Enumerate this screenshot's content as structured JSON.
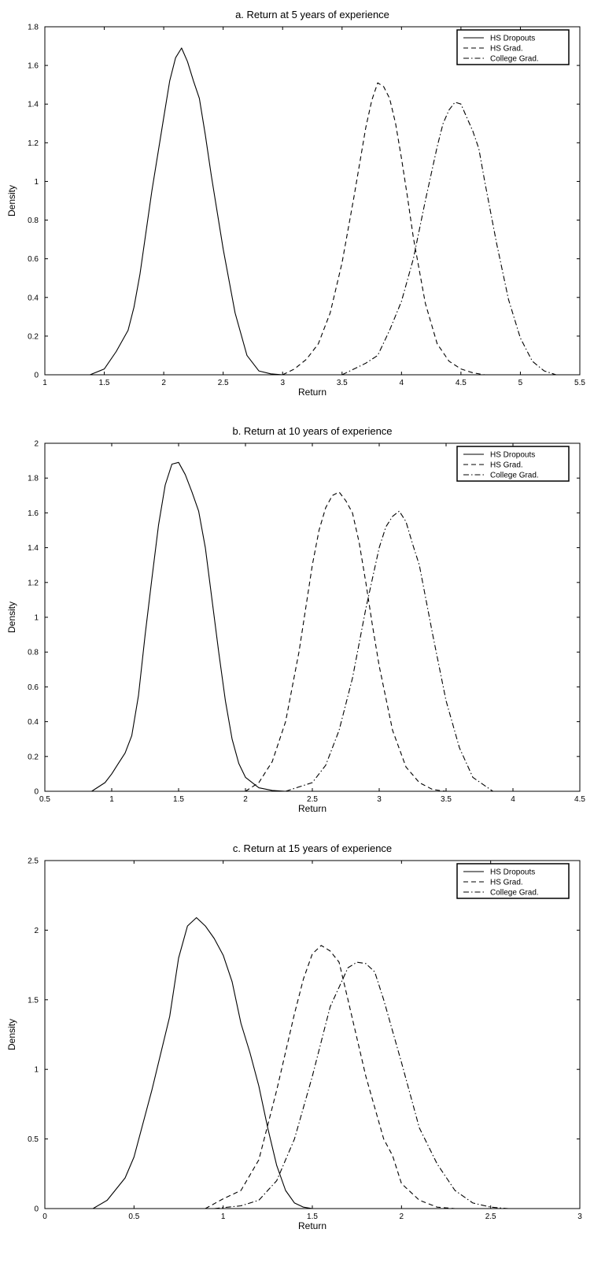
{
  "chart_data": [
    {
      "type": "line",
      "title": "a. Return at 5 years of experience",
      "xlabel": "Return",
      "ylabel": "Density",
      "xlim": [
        1,
        5.5
      ],
      "ylim": [
        0,
        1.8
      ],
      "xticks": [
        "1",
        "1.5",
        "2",
        "2.5",
        "3",
        "3.5",
        "4",
        "4.5",
        "5",
        "5.5"
      ],
      "yticks": [
        "0",
        "0.2",
        "0.4",
        "0.6",
        "0.8",
        "1",
        "1.2",
        "1.4",
        "1.6",
        "1.8"
      ],
      "grid": false,
      "legend_position": "top-right",
      "series": [
        {
          "name": "HS Dropouts",
          "dash": "solid",
          "x": [
            1.38,
            1.5,
            1.6,
            1.7,
            1.75,
            1.8,
            1.9,
            2.0,
            2.05,
            2.1,
            2.15,
            2.2,
            2.25,
            2.3,
            2.35,
            2.4,
            2.5,
            2.6,
            2.7,
            2.8,
            2.9,
            3.0
          ],
          "y": [
            0.0,
            0.03,
            0.12,
            0.23,
            0.35,
            0.52,
            0.95,
            1.33,
            1.52,
            1.64,
            1.69,
            1.62,
            1.52,
            1.43,
            1.24,
            1.03,
            0.65,
            0.32,
            0.1,
            0.02,
            0.005,
            0.0
          ]
        },
        {
          "name": "HS Grad.",
          "dash": "dashed",
          "x": [
            3.0,
            3.1,
            3.2,
            3.3,
            3.4,
            3.5,
            3.6,
            3.7,
            3.75,
            3.8,
            3.85,
            3.9,
            3.95,
            4.0,
            4.05,
            4.1,
            4.2,
            4.3,
            4.4,
            4.5,
            4.6,
            4.7
          ],
          "y": [
            0.0,
            0.03,
            0.08,
            0.16,
            0.32,
            0.58,
            0.92,
            1.28,
            1.42,
            1.51,
            1.49,
            1.43,
            1.3,
            1.12,
            0.92,
            0.71,
            0.37,
            0.16,
            0.07,
            0.03,
            0.01,
            0.0
          ]
        },
        {
          "name": "College Grad.",
          "dash": "dashdot",
          "x": [
            3.5,
            3.7,
            3.8,
            3.9,
            4.0,
            4.1,
            4.2,
            4.3,
            4.35,
            4.4,
            4.45,
            4.5,
            4.55,
            4.6,
            4.65,
            4.7,
            4.8,
            4.9,
            5.0,
            5.1,
            5.2,
            5.3
          ],
          "y": [
            0.0,
            0.06,
            0.1,
            0.23,
            0.38,
            0.6,
            0.9,
            1.18,
            1.3,
            1.37,
            1.41,
            1.4,
            1.33,
            1.26,
            1.17,
            1.0,
            0.68,
            0.39,
            0.19,
            0.07,
            0.02,
            0.0
          ]
        }
      ]
    },
    {
      "type": "line",
      "title": "b. Return at 10 years of experience",
      "xlabel": "Return",
      "ylabel": "Density",
      "xlim": [
        0.5,
        4.5
      ],
      "ylim": [
        0,
        2
      ],
      "xticks": [
        "0.5",
        "1",
        "1.5",
        "2",
        "2.5",
        "3",
        "3.5",
        "4",
        "4.5"
      ],
      "yticks": [
        "0",
        "0.2",
        "0.4",
        "0.6",
        "0.8",
        "1",
        "1.2",
        "1.4",
        "1.6",
        "1.8",
        "2"
      ],
      "grid": false,
      "legend_position": "top-right",
      "series": [
        {
          "name": "HS Dropouts",
          "dash": "solid",
          "x": [
            0.85,
            0.95,
            1.0,
            1.05,
            1.1,
            1.15,
            1.2,
            1.25,
            1.3,
            1.35,
            1.4,
            1.45,
            1.5,
            1.55,
            1.6,
            1.65,
            1.7,
            1.75,
            1.8,
            1.85,
            1.9,
            1.95,
            2.0,
            2.1,
            2.2,
            2.3
          ],
          "y": [
            0.0,
            0.05,
            0.1,
            0.16,
            0.22,
            0.32,
            0.55,
            0.9,
            1.22,
            1.53,
            1.76,
            1.88,
            1.89,
            1.82,
            1.72,
            1.61,
            1.4,
            1.1,
            0.8,
            0.52,
            0.3,
            0.16,
            0.08,
            0.02,
            0.005,
            0.0
          ]
        },
        {
          "name": "HS Grad.",
          "dash": "dashed",
          "x": [
            2.0,
            2.1,
            2.2,
            2.3,
            2.4,
            2.5,
            2.55,
            2.6,
            2.65,
            2.7,
            2.75,
            2.8,
            2.85,
            2.9,
            2.95,
            3.0,
            3.1,
            3.2,
            3.3,
            3.4,
            3.5
          ],
          "y": [
            0.0,
            0.05,
            0.17,
            0.4,
            0.8,
            1.3,
            1.5,
            1.63,
            1.7,
            1.72,
            1.67,
            1.6,
            1.43,
            1.2,
            0.95,
            0.72,
            0.35,
            0.14,
            0.05,
            0.01,
            0.0
          ]
        },
        {
          "name": "College Grad.",
          "dash": "dashdot",
          "x": [
            2.3,
            2.5,
            2.6,
            2.7,
            2.8,
            2.9,
            3.0,
            3.05,
            3.1,
            3.15,
            3.2,
            3.25,
            3.3,
            3.4,
            3.5,
            3.6,
            3.7,
            3.85
          ],
          "y": [
            0.0,
            0.05,
            0.15,
            0.35,
            0.65,
            1.05,
            1.4,
            1.52,
            1.58,
            1.61,
            1.55,
            1.42,
            1.3,
            0.9,
            0.52,
            0.25,
            0.08,
            0.0
          ]
        }
      ]
    },
    {
      "type": "line",
      "title": "c. Return at 15 years of experience",
      "xlabel": "Return",
      "ylabel": "Density",
      "xlim": [
        0,
        3
      ],
      "ylim": [
        0,
        2.5
      ],
      "xticks": [
        "0",
        "0.5",
        "1",
        "1.5",
        "2",
        "2.5",
        "3"
      ],
      "yticks": [
        "0",
        "0.5",
        "1",
        "1.5",
        "2",
        "2.5"
      ],
      "grid": false,
      "legend_position": "top-right",
      "series": [
        {
          "name": "HS Dropouts",
          "dash": "solid",
          "x": [
            0.27,
            0.35,
            0.45,
            0.5,
            0.6,
            0.7,
            0.75,
            0.8,
            0.85,
            0.9,
            0.95,
            1.0,
            1.05,
            1.1,
            1.15,
            1.2,
            1.25,
            1.3,
            1.35,
            1.4,
            1.45,
            1.5
          ],
          "y": [
            0.0,
            0.06,
            0.22,
            0.37,
            0.85,
            1.38,
            1.8,
            2.03,
            2.09,
            2.03,
            1.94,
            1.82,
            1.63,
            1.33,
            1.12,
            0.88,
            0.58,
            0.31,
            0.13,
            0.04,
            0.01,
            0.0
          ]
        },
        {
          "name": "HS Grad.",
          "dash": "dashed",
          "x": [
            0.9,
            1.0,
            1.1,
            1.2,
            1.3,
            1.4,
            1.45,
            1.5,
            1.55,
            1.6,
            1.65,
            1.7,
            1.8,
            1.9,
            1.95,
            2.0,
            2.1,
            2.2,
            2.3
          ],
          "y": [
            0.0,
            0.07,
            0.13,
            0.35,
            0.85,
            1.4,
            1.65,
            1.83,
            1.89,
            1.85,
            1.77,
            1.5,
            0.95,
            0.5,
            0.38,
            0.18,
            0.06,
            0.01,
            0.0
          ]
        },
        {
          "name": "College Grad.",
          "dash": "dashdot",
          "x": [
            0.95,
            1.1,
            1.2,
            1.3,
            1.4,
            1.5,
            1.6,
            1.7,
            1.75,
            1.8,
            1.85,
            1.9,
            2.0,
            2.1,
            2.2,
            2.3,
            2.4,
            2.5,
            2.6
          ],
          "y": [
            0.0,
            0.02,
            0.06,
            0.2,
            0.5,
            0.95,
            1.45,
            1.73,
            1.77,
            1.76,
            1.7,
            1.5,
            1.05,
            0.58,
            0.32,
            0.13,
            0.04,
            0.01,
            0.0
          ]
        }
      ]
    }
  ]
}
